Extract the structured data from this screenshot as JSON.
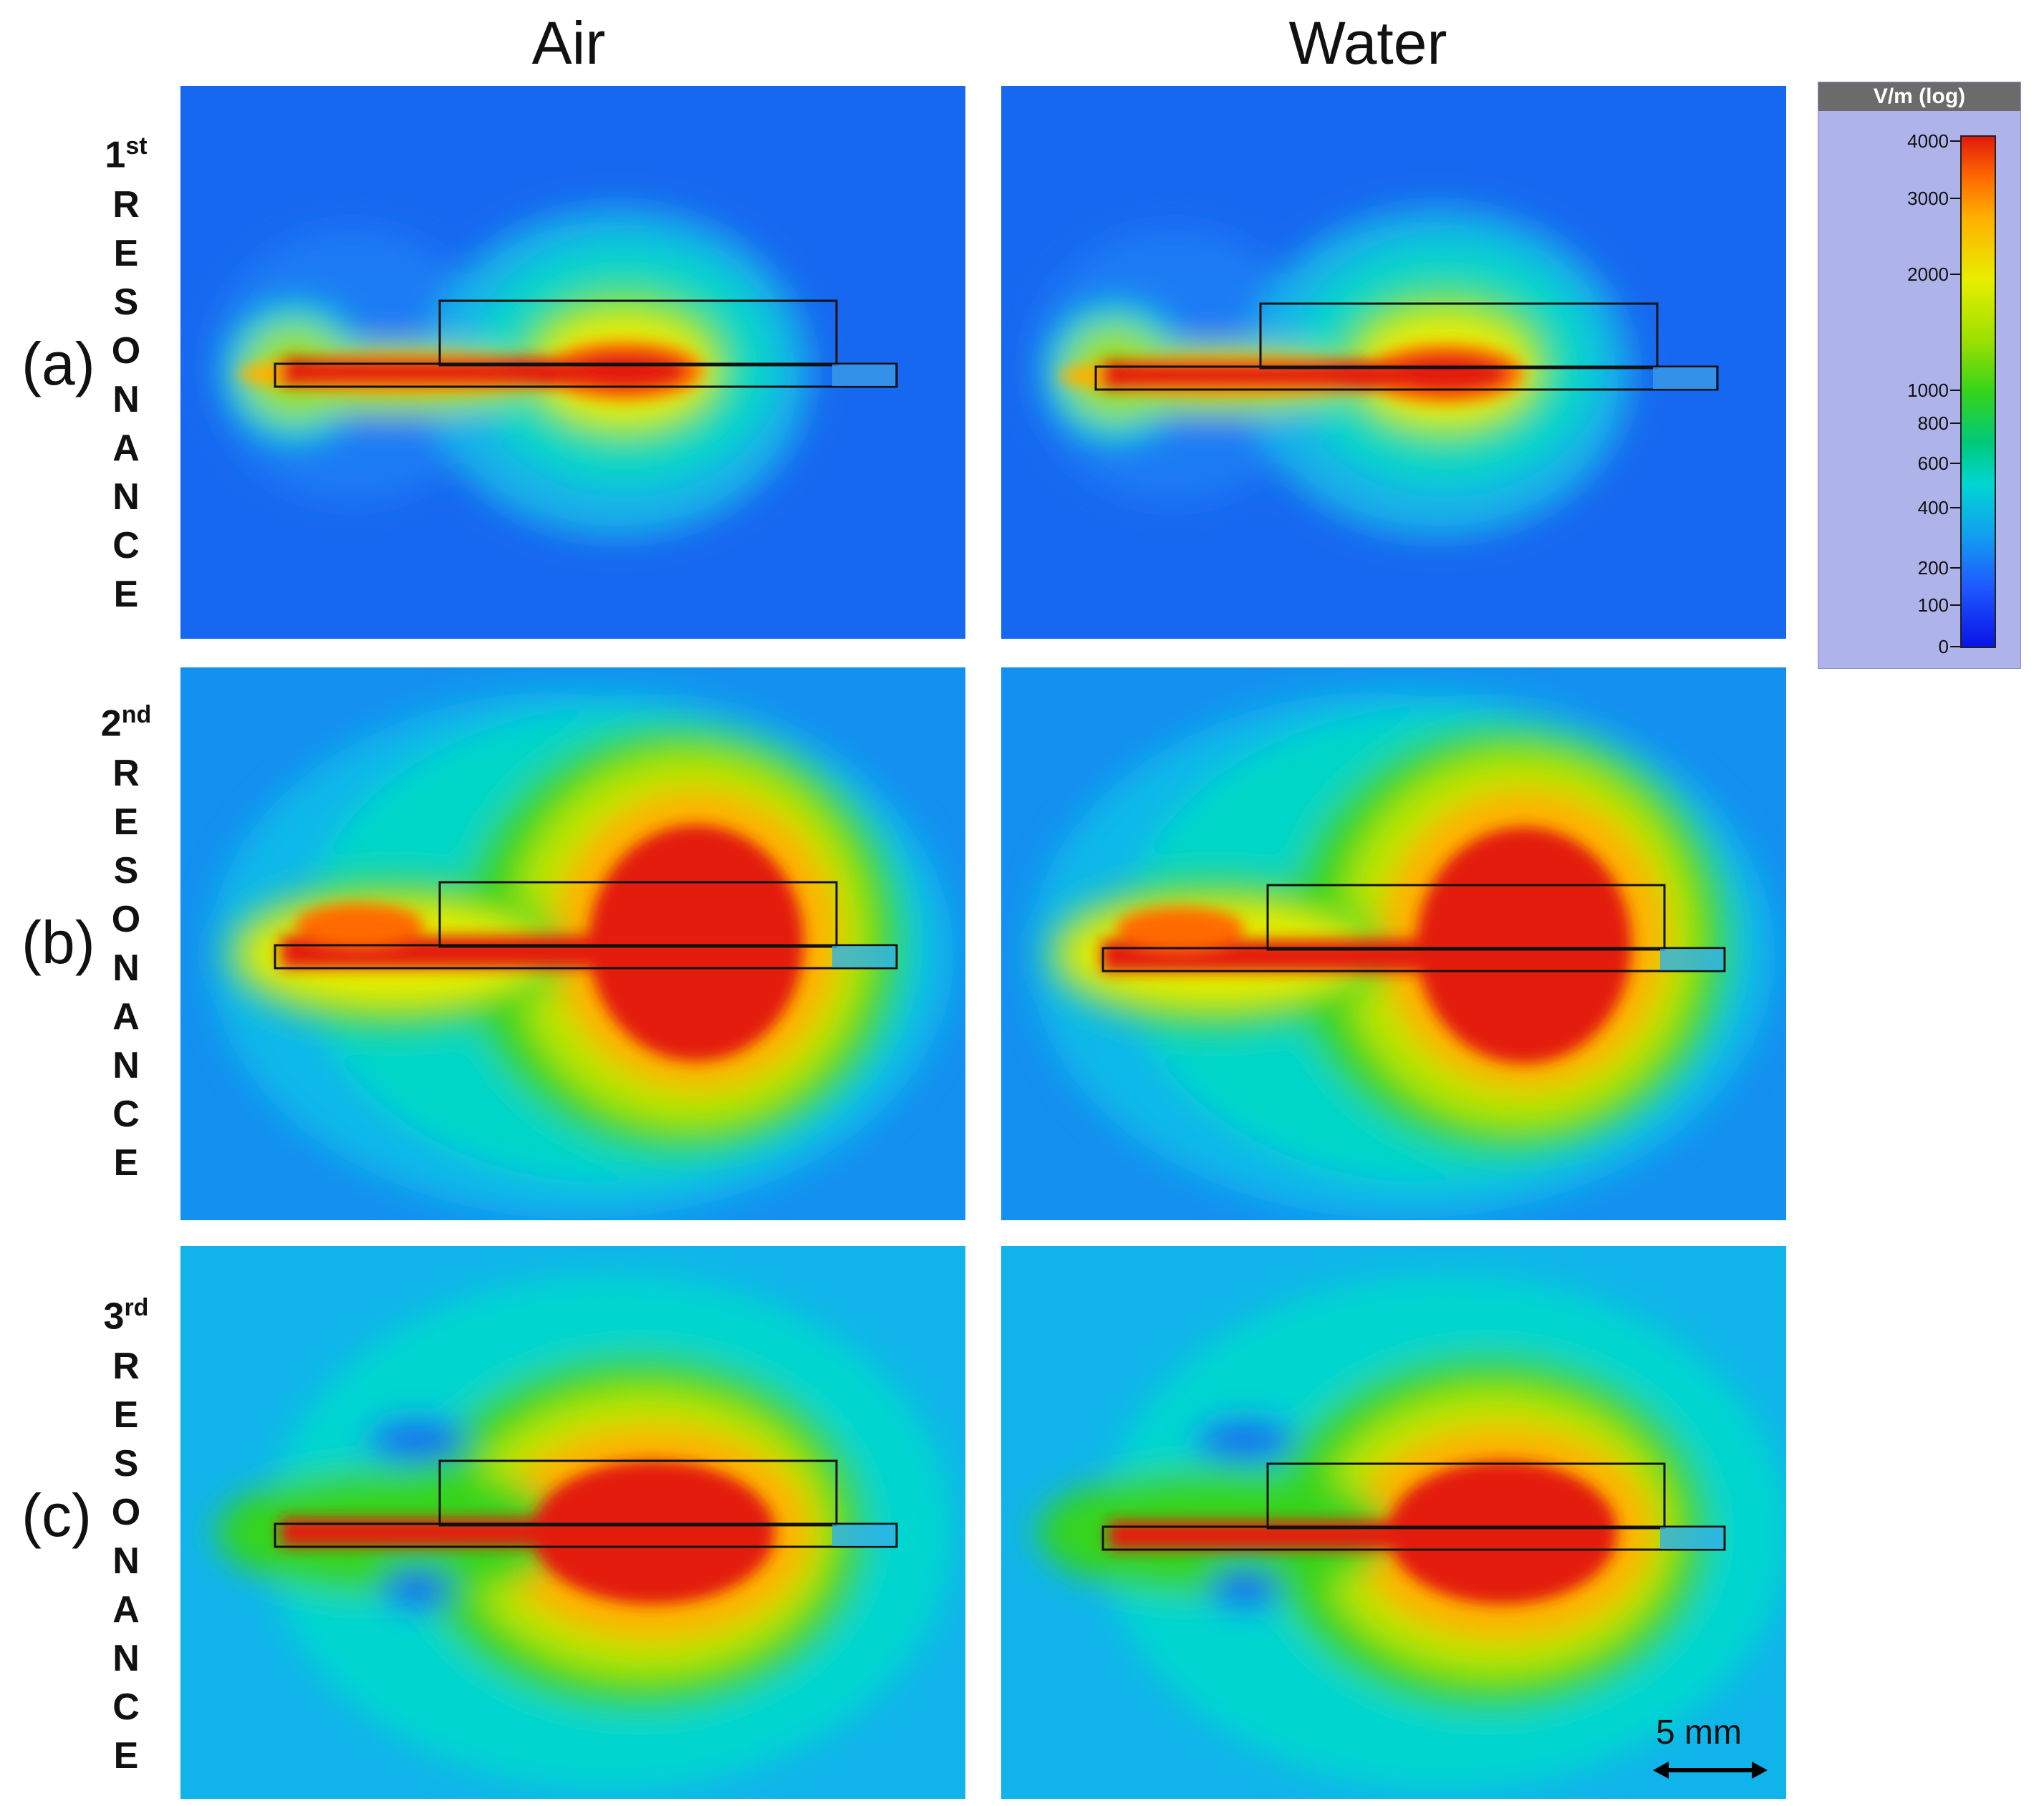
{
  "columns": {
    "air": "Air",
    "water": "Water"
  },
  "rows": [
    {
      "label": "(a)",
      "ordinal": "1",
      "suffix": "st",
      "word": [
        "R",
        "E",
        "S",
        "O",
        "N",
        "A",
        "N",
        "C",
        "E"
      ]
    },
    {
      "label": "(b)",
      "ordinal": "2",
      "suffix": "nd",
      "word": [
        "R",
        "E",
        "S",
        "O",
        "N",
        "A",
        "N",
        "C",
        "E"
      ]
    },
    {
      "label": "(c)",
      "ordinal": "3",
      "suffix": "rd",
      "word": [
        "R",
        "E",
        "S",
        "O",
        "N",
        "A",
        "N",
        "C",
        "E"
      ]
    }
  ],
  "legend": {
    "title": "V/m (log)",
    "ticks": [
      "4000",
      "3000",
      "2000",
      "1000",
      "800",
      "600",
      "400",
      "200",
      "100",
      "0"
    ]
  },
  "scale_bar": {
    "label": "5 mm"
  },
  "colors": {
    "field_max": "#e31a0c",
    "field_high": "#ffb000",
    "field_mid": "#34d41a",
    "field_low": "#00d6d0",
    "field_min": "#0a14e8",
    "legend_bg": "#aeb4ea"
  }
}
